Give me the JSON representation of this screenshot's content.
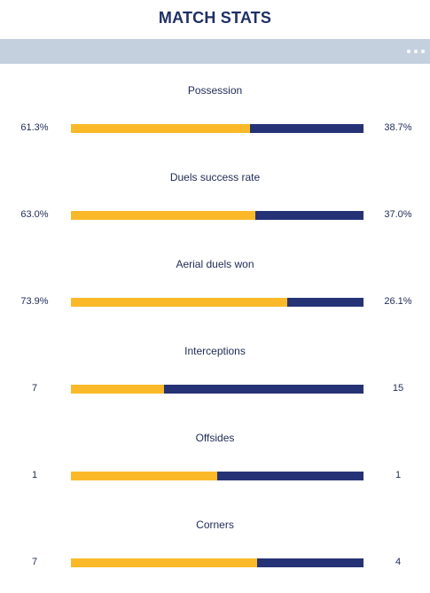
{
  "title": "MATCH STATS",
  "colors": {
    "home": "#fbb929",
    "away": "#253376",
    "header_bar": "#c5d0df",
    "text": "#1e2a56"
  },
  "stats": [
    {
      "label": "Possession",
      "left_display": "61.3%",
      "right_display": "38.7%",
      "left_value": 61.3,
      "right_value": 38.7
    },
    {
      "label": "Duels success rate",
      "left_display": "63.0%",
      "right_display": "37.0%",
      "left_value": 63.0,
      "right_value": 37.0
    },
    {
      "label": "Aerial duels won",
      "left_display": "73.9%",
      "right_display": "26.1%",
      "left_value": 73.9,
      "right_value": 26.1
    },
    {
      "label": "Interceptions",
      "left_display": "7",
      "right_display": "15",
      "left_value": 7,
      "right_value": 15
    },
    {
      "label": "Offsides",
      "left_display": "1",
      "right_display": "1",
      "left_value": 1,
      "right_value": 1
    },
    {
      "label": "Corners",
      "left_display": "7",
      "right_display": "4",
      "left_value": 7,
      "right_value": 4
    }
  ]
}
